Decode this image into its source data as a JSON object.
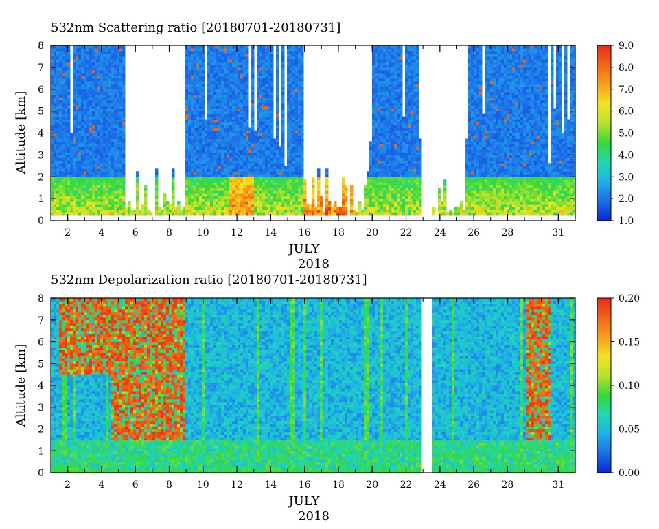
{
  "chart_data": [
    {
      "type": "heatmap",
      "title": "532nm Scattering ratio [20180701-20180731]",
      "ylabel": "Altitude [km]",
      "xlabel": "JULY",
      "xlabel2": "2018",
      "x_range": [
        1,
        32
      ],
      "ylim": [
        0,
        8
      ],
      "x_ticks": [
        2,
        4,
        6,
        8,
        10,
        12,
        14,
        16,
        18,
        20,
        22,
        24,
        26,
        28,
        31
      ],
      "x_tick_labels": [
        "2",
        "4",
        "6",
        "8",
        "10",
        "12",
        "14",
        "16",
        "18",
        "20",
        "22",
        "24",
        "26",
        "28",
        "31"
      ],
      "y_ticks": [
        0,
        1,
        2,
        3,
        4,
        5,
        6,
        7,
        8
      ],
      "y_tick_labels": [
        "0",
        "1",
        "2",
        "3",
        "4",
        "5",
        "6",
        "7",
        "8"
      ],
      "colorbar": {
        "range": [
          1.0,
          9.0
        ],
        "ticks": [
          1.0,
          2.0,
          3.0,
          4.0,
          5.0,
          6.0,
          7.0,
          8.0,
          9.0
        ],
        "labels": [
          "1.0",
          "2.0",
          "3.0",
          "4.0",
          "5.0",
          "6.0",
          "7.0",
          "8.0",
          "9.0"
        ],
        "colormap": [
          "#0a2cd6",
          "#1e6fe8",
          "#1fb3e8",
          "#1fd8b0",
          "#36d83a",
          "#b6e22a",
          "#f3e31f",
          "#f7a21c",
          "#f06a14",
          "#e8301a"
        ]
      },
      "data_gaps_days": [
        [
          22.85,
          23.5
        ]
      ],
      "clear_sky_days": [
        [
          5.4,
          8.9
        ],
        [
          16.0,
          19.9
        ],
        [
          23.6,
          25.5
        ]
      ],
      "boundary_layer_top_km": 2.0,
      "peak_value_days": [
        [
          11.5,
          13.0
        ],
        [
          16.0,
          19.0
        ]
      ]
    },
    {
      "type": "heatmap",
      "title": "532nm Depolarization ratio [20180701-20180731]",
      "ylabel": "Altitude [km]",
      "xlabel": "JULY",
      "xlabel2": "2018",
      "x_range": [
        1,
        32
      ],
      "ylim": [
        0,
        8
      ],
      "x_ticks": [
        2,
        4,
        6,
        8,
        10,
        12,
        14,
        16,
        18,
        20,
        22,
        24,
        26,
        28,
        31
      ],
      "x_tick_labels": [
        "2",
        "4",
        "6",
        "8",
        "10",
        "12",
        "14",
        "16",
        "18",
        "20",
        "22",
        "24",
        "26",
        "28",
        "31"
      ],
      "y_ticks": [
        0,
        1,
        2,
        3,
        4,
        5,
        6,
        7,
        8
      ],
      "y_tick_labels": [
        "0",
        "1",
        "2",
        "3",
        "4",
        "5",
        "6",
        "7",
        "8"
      ],
      "colorbar": {
        "range": [
          0.0,
          0.2
        ],
        "ticks": [
          0.0,
          0.05,
          0.1,
          0.15,
          0.2
        ],
        "labels": [
          "0.00",
          "0.05",
          "0.10",
          "0.15",
          "0.20"
        ],
        "colormap": [
          "#0a2cd6",
          "#1e6fe8",
          "#1fb3e8",
          "#1fd8b0",
          "#36d83a",
          "#b6e22a",
          "#f3e31f",
          "#f7a21c",
          "#f06a14",
          "#e8301a"
        ]
      },
      "data_gaps_days": [
        [
          22.85,
          23.5
        ]
      ],
      "high_depol_regions": [
        {
          "days": [
            1.5,
            4.5
          ],
          "alt_km": [
            4.5,
            8
          ]
        },
        {
          "days": [
            4.5,
            9.0
          ],
          "alt_km": [
            1.5,
            8
          ]
        },
        {
          "days": [
            29.0,
            30.5
          ],
          "alt_km": [
            1.5,
            8
          ]
        }
      ]
    }
  ]
}
